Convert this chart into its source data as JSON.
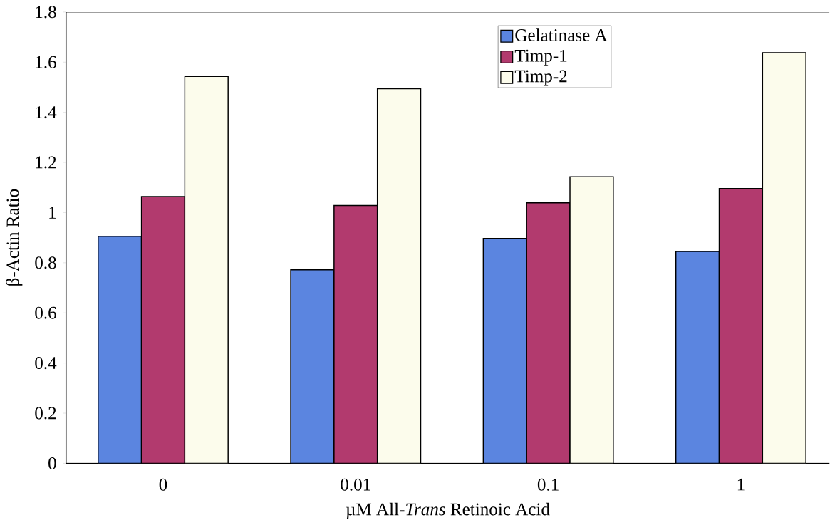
{
  "chart_data": {
    "type": "bar",
    "xlabel": "µM All-*Trans* Retinoic Acid",
    "ylabel": "β-Actin Ratio",
    "categories": [
      "0",
      "0.01",
      "0.1",
      "1"
    ],
    "series": [
      {
        "name": "Gelatinase A",
        "color": "#5b85e0",
        "values": [
          0.905,
          0.772,
          0.897,
          0.845
        ]
      },
      {
        "name": "Timp-1",
        "color": "#b23a6e",
        "values": [
          1.064,
          1.028,
          1.039,
          1.096
        ]
      },
      {
        "name": "Timp-2",
        "color": "#fcfcec",
        "values": [
          1.543,
          1.494,
          1.143,
          1.638
        ]
      }
    ],
    "ylim": [
      0,
      1.8
    ],
    "yticks": [
      0,
      0.2,
      0.4,
      0.6,
      0.8,
      1,
      1.2,
      1.4,
      1.6,
      1.8
    ],
    "legend": "top"
  }
}
